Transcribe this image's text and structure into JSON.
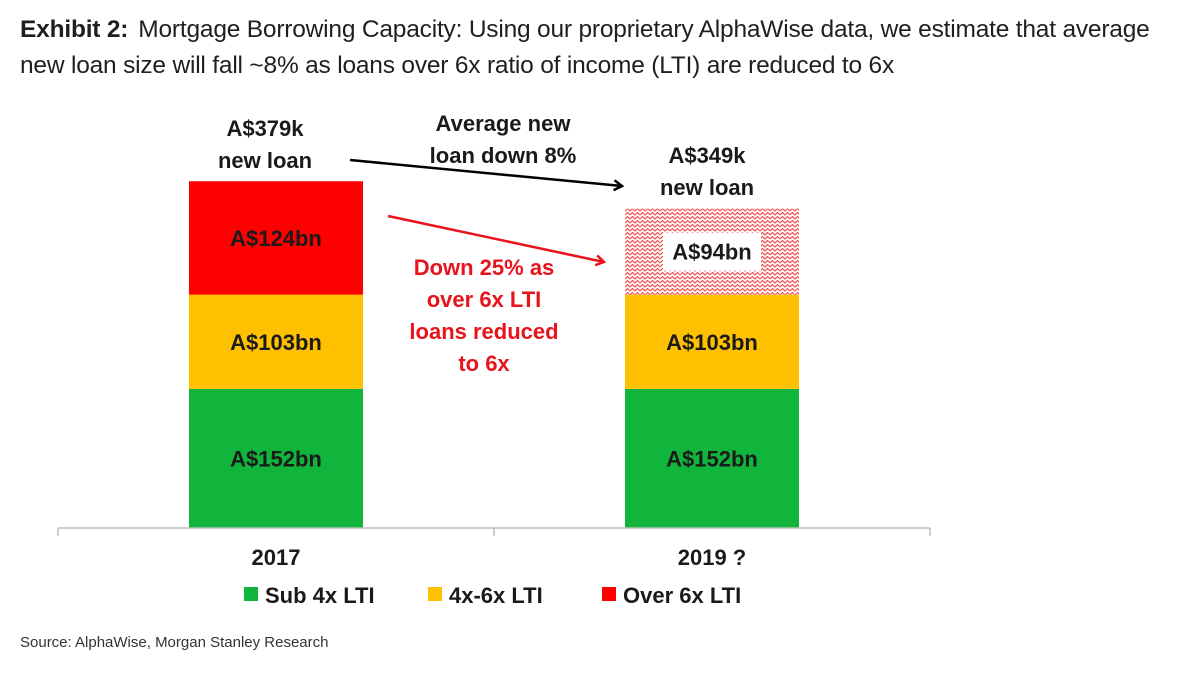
{
  "header": {
    "exhibit": "Exhibit 2:",
    "title": "Mortgage Borrowing Capacity: Using our proprietary AlphaWise data, we estimate that average new loan size will fall ~8% as loans over 6x ratio of income (LTI) are reduced to 6x"
  },
  "source": "Source: AlphaWise, Morgan Stanley Research",
  "colors": {
    "sub4x": "#11b53b",
    "mid": "#ffc000",
    "over6x": "#ff0000",
    "arrow_black": "#000000",
    "arrow_red": "#e8131b"
  },
  "chart_data": {
    "type": "bar",
    "stacked": true,
    "categories": [
      "2017",
      "2019 ?"
    ],
    "unit": "A$bn",
    "series": [
      {
        "name": "Sub 4x LTI",
        "values": [
          152,
          152
        ],
        "labels": [
          "A$152bn",
          "A$152bn"
        ],
        "color": "#11b53b",
        "pattern": "solid"
      },
      {
        "name": "4x-6x LTI",
        "values": [
          103,
          103
        ],
        "labels": [
          "A$103bn",
          "A$103bn"
        ],
        "color": "#ffc000",
        "pattern": "solid"
      },
      {
        "name": "Over 6x LTI",
        "values": [
          124,
          94
        ],
        "labels": [
          "A$124bn",
          "A$94bn"
        ],
        "color": "#ff0000",
        "patterns": [
          "solid",
          "hatched"
        ]
      }
    ],
    "totals_labels": [
      [
        "A$379k",
        "new loan"
      ],
      [
        "A$349k",
        "new loan"
      ]
    ],
    "annotations": {
      "black_arrow": [
        "Average new",
        "loan down 8%"
      ],
      "red_arrow": [
        "Down 25% as",
        "over 6x LTI",
        "loans reduced",
        "to 6x"
      ]
    },
    "legend_position": "bottom",
    "grid": false
  }
}
